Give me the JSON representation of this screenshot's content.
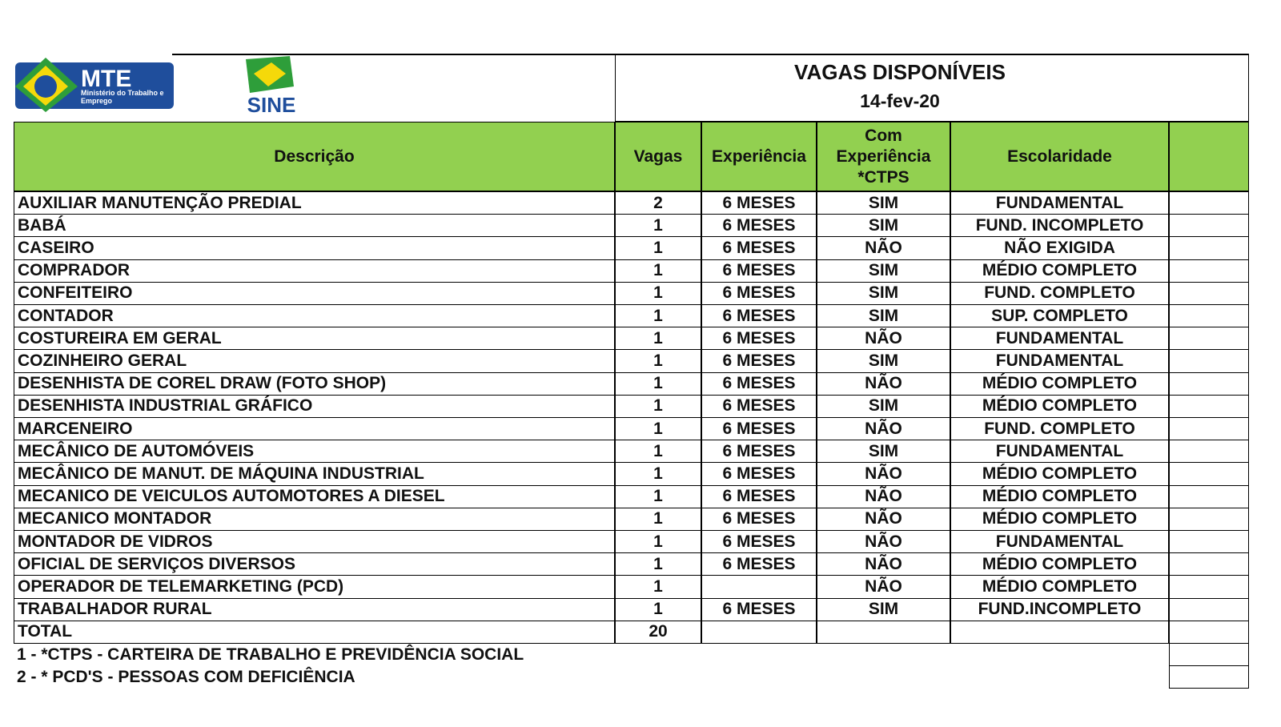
{
  "header": {
    "logos": {
      "mte": "MTE",
      "mte_subtitle": "Ministério do Trabalho e Emprego",
      "sine": "SINE"
    },
    "title": "VAGAS DISPONÍVEIS",
    "date": "14-fev-20"
  },
  "table": {
    "columns": [
      "Descrição",
      "Vagas",
      "Experiência",
      "Com Experiência *CTPS",
      "Escolaridade"
    ],
    "rows": [
      [
        "AUXILIAR MANUTENÇÃO PREDIAL",
        2,
        "6 MESES",
        "SIM",
        "FUNDAMENTAL"
      ],
      [
        "BABÁ",
        1,
        "6 MESES",
        "SIM",
        "FUND. INCOMPLETO"
      ],
      [
        "CASEIRO",
        1,
        "6 MESES",
        "NÃO",
        "NÃO EXIGIDA"
      ],
      [
        "COMPRADOR",
        1,
        "6 MESES",
        "SIM",
        "MÉDIO COMPLETO"
      ],
      [
        "CONFEITEIRO",
        1,
        "6 MESES",
        "SIM",
        "FUND. COMPLETO"
      ],
      [
        "CONTADOR",
        1,
        "6 MESES",
        "SIM",
        "SUP. COMPLETO"
      ],
      [
        "COSTUREIRA EM GERAL",
        1,
        "6 MESES",
        "NÃO",
        "FUNDAMENTAL"
      ],
      [
        "COZINHEIRO GERAL",
        1,
        "6 MESES",
        "SIM",
        "FUNDAMENTAL"
      ],
      [
        "DESENHISTA DE COREL DRAW (FOTO SHOP)",
        1,
        "6 MESES",
        "NÃO",
        "MÉDIO COMPLETO"
      ],
      [
        "DESENHISTA INDUSTRIAL GRÁFICO",
        1,
        "6 MESES",
        "SIM",
        "MÉDIO COMPLETO"
      ],
      [
        "MARCENEIRO",
        1,
        "6 MESES",
        "NÃO",
        "FUND. COMPLETO"
      ],
      [
        "MECÂNICO DE AUTOMÓVEIS",
        1,
        "6 MESES",
        "SIM",
        "FUNDAMENTAL"
      ],
      [
        "MECÂNICO DE MANUT. DE MÁQUINA INDUSTRIAL",
        1,
        "6 MESES",
        "NÃO",
        "MÉDIO COMPLETO"
      ],
      [
        "MECANICO DE VEICULOS AUTOMOTORES A DIESEL",
        1,
        "6 MESES",
        "NÃO",
        "MÉDIO COMPLETO"
      ],
      [
        "MECANICO MONTADOR",
        1,
        "6 MESES",
        "NÃO",
        "MÉDIO COMPLETO"
      ],
      [
        "MONTADOR DE VIDROS",
        1,
        "6 MESES",
        "NÃO",
        "FUNDAMENTAL"
      ],
      [
        "OFICIAL DE SERVIÇOS DIVERSOS",
        1,
        "6 MESES",
        "NÃO",
        "MÉDIO COMPLETO"
      ],
      [
        "OPERADOR DE TELEMARKETING (PCD)",
        1,
        null,
        "NÃO",
        "MÉDIO COMPLETO"
      ],
      [
        "TRABALHADOR RURAL",
        1,
        "6 MESES",
        "SIM",
        "FUND.INCOMPLETO"
      ]
    ],
    "total": {
      "label": "TOTAL",
      "vagas": 20
    }
  },
  "footnotes": [
    "1 - *CTPS - CARTEIRA DE TRABALHO E PREVIDÊNCIA SOCIAL",
    "2 - * PCD'S - PESSOAS COM DEFICIÊNCIA"
  ]
}
